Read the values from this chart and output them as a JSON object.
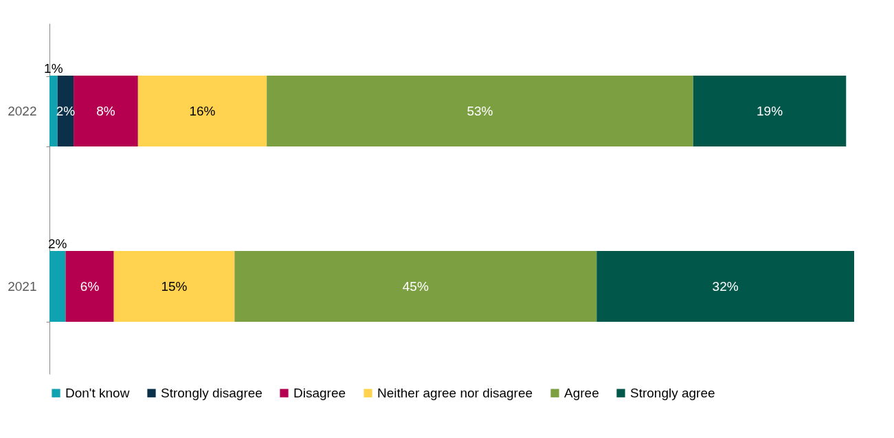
{
  "chart_data": {
    "type": "bar",
    "orientation": "horizontal",
    "stacked": true,
    "categories": [
      "2022",
      "2021"
    ],
    "xlim": [
      0,
      100
    ],
    "tick_labels": "y",
    "grid": false,
    "legend": "bottom",
    "data_labels": true,
    "series": [
      {
        "name": "Don't know",
        "color": "#0fa3b1",
        "values": [
          1,
          2
        ],
        "value_labels": [
          "1%",
          "2%"
        ]
      },
      {
        "name": "Strongly disagree",
        "color": "#0b3049",
        "values": [
          2,
          null
        ],
        "value_labels": [
          "2%",
          null
        ]
      },
      {
        "name": "Disagree",
        "color": "#b5004f",
        "values": [
          8,
          6
        ],
        "value_labels": [
          "8%",
          "6%"
        ]
      },
      {
        "name": "Neither agree nor disagree",
        "color": "#ffd34f",
        "values": [
          16,
          15
        ],
        "value_labels": [
          "16%",
          "15%"
        ]
      },
      {
        "name": "Agree",
        "color": "#7b9f41",
        "values": [
          53,
          45
        ],
        "value_labels": [
          "53%",
          "45%"
        ]
      },
      {
        "name": "Strongly agree",
        "color": "#00574a",
        "values": [
          19,
          32
        ],
        "value_labels": [
          "19%",
          "32%"
        ]
      }
    ]
  }
}
